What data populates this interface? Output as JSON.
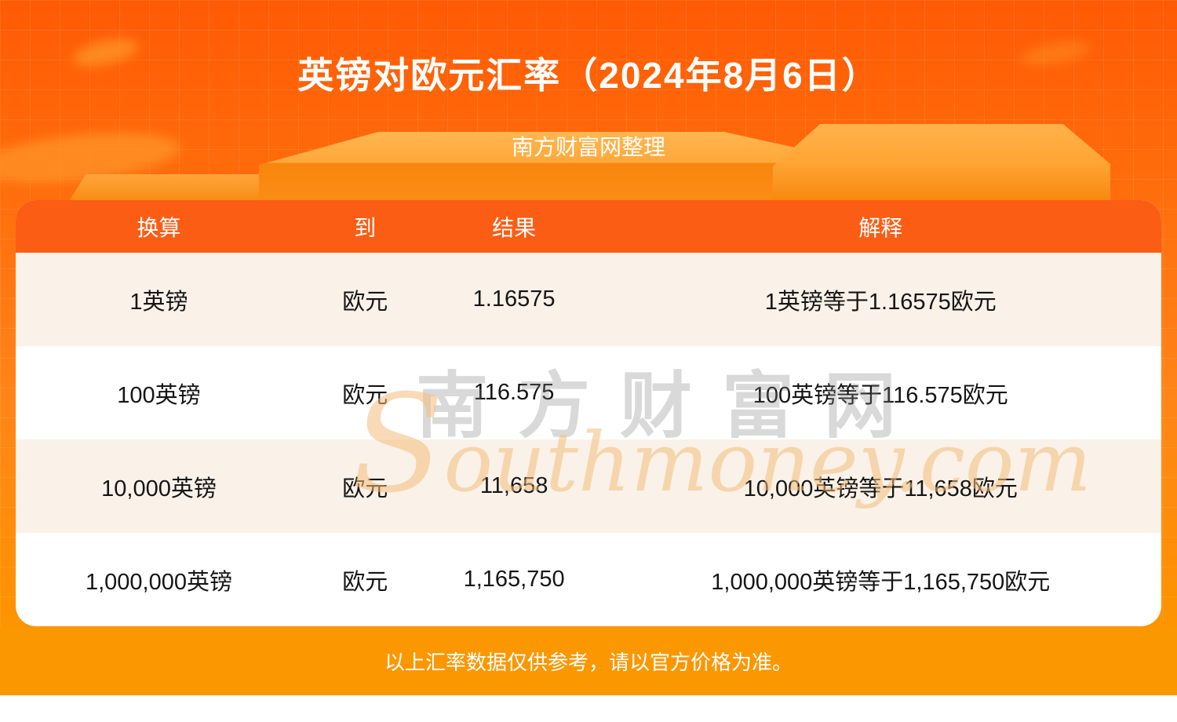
{
  "page": {
    "title": "英镑对欧元汇率（2024年8月6日）",
    "subtitle": "南方财富网整理",
    "disclaimer": "以上汇率数据仅供参考，请以官方价格为准。"
  },
  "watermark": {
    "cn": "南方财富网",
    "en": "Southmoney.com"
  },
  "table": {
    "headers": [
      "换算",
      "到",
      "结果",
      "解释"
    ],
    "rows": [
      {
        "cells": [
          "1英镑",
          "欧元",
          "1.16575",
          "1英镑等于1.16575欧元"
        ]
      },
      {
        "cells": [
          "100英镑",
          "欧元",
          "116.575",
          "100英镑等于116.575欧元"
        ]
      },
      {
        "cells": [
          "10,000英镑",
          "欧元",
          "11,658",
          "10,000英镑等于11,658欧元"
        ]
      },
      {
        "cells": [
          "1,000,000英镑",
          "欧元",
          "1,165,750",
          "1,000,000英镑等于1,165,750欧元"
        ]
      }
    ]
  },
  "colors": {
    "hero_top": "#ff5a04",
    "hero_bottom": "#fd9400",
    "header_bg": "#fb5d15",
    "row_alt_bg": "#faf1e8",
    "footer_bg": "#fb9700",
    "text_dark": "#151515",
    "text_light": "#ffffff"
  }
}
